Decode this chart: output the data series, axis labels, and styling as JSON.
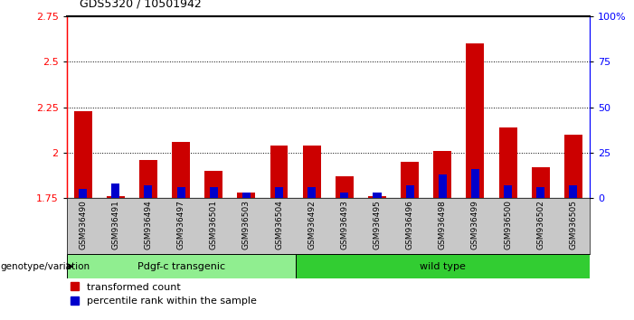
{
  "title": "GDS5320 / 10501942",
  "samples": [
    "GSM936490",
    "GSM936491",
    "GSM936494",
    "GSM936497",
    "GSM936501",
    "GSM936503",
    "GSM936504",
    "GSM936492",
    "GSM936493",
    "GSM936495",
    "GSM936496",
    "GSM936498",
    "GSM936499",
    "GSM936500",
    "GSM936502",
    "GSM936505"
  ],
  "red_values": [
    2.23,
    1.76,
    1.96,
    2.06,
    1.9,
    1.78,
    2.04,
    2.04,
    1.87,
    1.76,
    1.95,
    2.01,
    2.6,
    2.14,
    1.92,
    2.1
  ],
  "blue_pct": [
    5,
    8,
    7,
    6,
    6,
    3,
    6,
    6,
    3,
    3,
    7,
    13,
    16,
    7,
    6,
    7
  ],
  "ylim_left": [
    1.75,
    2.75
  ],
  "ylim_right": [
    0,
    100
  ],
  "yticks_left": [
    1.75,
    2.0,
    2.25,
    2.5,
    2.75
  ],
  "ytick_labels_left": [
    "1.75",
    "2",
    "2.25",
    "2.5",
    "2.75"
  ],
  "yticks_right": [
    0,
    25,
    50,
    75,
    100
  ],
  "ytick_labels_right": [
    "0",
    "25",
    "50",
    "75",
    "100%"
  ],
  "baseline": 1.75,
  "group1_label": "Pdgf-c transgenic",
  "group2_label": "wild type",
  "group1_count": 7,
  "group2_count": 9,
  "group1_color": "#90EE90",
  "group2_color": "#32CD32",
  "bar_width": 0.55,
  "blue_bar_width": 0.25,
  "red_color": "#CC0000",
  "blue_color": "#0000CC",
  "legend_red": "transformed count",
  "legend_blue": "percentile rank within the sample",
  "genotype_label": "genotype/variation"
}
